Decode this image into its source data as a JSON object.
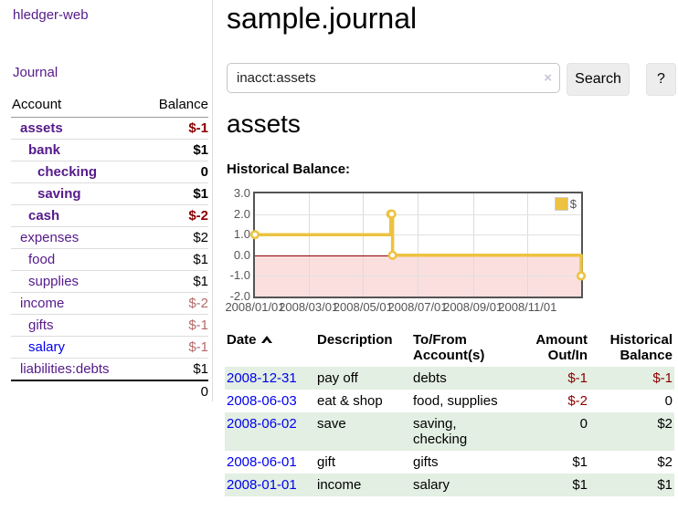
{
  "colors": {
    "link-purple": "#551a8b",
    "link-blue": "#0000ee",
    "neg-strong": "#8b0000",
    "neg-muted": "#b36a6a",
    "row-green": "#e2efe2",
    "divider": "#dddddd",
    "button-bg": "#ededed",
    "chart-gold": "#edc240",
    "chart-neg-fill": "#fbdfdf",
    "chart-zero": "#8b0000",
    "chart-border": "#545454"
  },
  "app": {
    "brand": "hledger-web"
  },
  "sidebar": {
    "journal_link": "Journal",
    "accounts": {
      "headers": {
        "account": "Account",
        "balance": "Balance"
      },
      "rows": [
        {
          "name": "assets",
          "balance": "$-1",
          "depth": 1,
          "in_account": true
        },
        {
          "name": "bank",
          "balance": "$1",
          "depth": 2,
          "in_account": true
        },
        {
          "name": "checking",
          "balance": "0",
          "depth": 3,
          "in_account": true
        },
        {
          "name": "saving",
          "balance": "$1",
          "depth": 3,
          "in_account": true
        },
        {
          "name": "cash",
          "balance": "$-2",
          "depth": 2,
          "in_account": true
        },
        {
          "name": "expenses",
          "balance": "$2",
          "depth": 1,
          "in_account": false
        },
        {
          "name": "food",
          "balance": "$1",
          "depth": 2,
          "in_account": false
        },
        {
          "name": "supplies",
          "balance": "$1",
          "depth": 2,
          "in_account": false
        },
        {
          "name": "income",
          "balance": "$-2",
          "depth": 1,
          "in_account": false
        },
        {
          "name": "gifts",
          "balance": "$-1",
          "depth": 2,
          "in_account": false
        },
        {
          "name": "salary",
          "balance": "$-1",
          "depth": 2,
          "in_account": false
        },
        {
          "name": "liabilities:debts",
          "balance": "$1",
          "depth": 1,
          "in_account": false
        }
      ],
      "total": "0"
    }
  },
  "main": {
    "title": "sample.journal",
    "search": {
      "value": "inacct:assets",
      "clear_icon": "×",
      "button_label": "Search",
      "help_label": "?"
    },
    "account_heading": "assets",
    "chart": {
      "label": "Historical Balance:",
      "chart_data": {
        "type": "line",
        "style": "step",
        "series": [
          {
            "name": "$",
            "points": [
              {
                "date": "2008-01-01",
                "day": 0,
                "value": 1
              },
              {
                "date": "2008-06-01",
                "day": 152,
                "value": 2
              },
              {
                "date": "2008-06-02",
                "day": 153,
                "value": 2
              },
              {
                "date": "2008-06-03",
                "day": 154,
                "value": 0
              },
              {
                "date": "2008-12-31",
                "day": 365,
                "value": -1
              }
            ]
          }
        ],
        "x_range_days": [
          0,
          365
        ],
        "ylim": [
          -2,
          3
        ],
        "yticks": [
          {
            "v": 3,
            "label": "3.0"
          },
          {
            "v": 2,
            "label": "2.0"
          },
          {
            "v": 1,
            "label": "1.0"
          },
          {
            "v": 0,
            "label": "0.0"
          },
          {
            "v": -1,
            "label": "-1.0"
          },
          {
            "v": -2,
            "label": "-2.0"
          }
        ],
        "xticks": [
          {
            "day": 0,
            "label": "2008/01/01"
          },
          {
            "day": 60,
            "label": "2008/03/01"
          },
          {
            "day": 121,
            "label": "2008/05/01"
          },
          {
            "day": 182,
            "label": "2008/07/01"
          },
          {
            "day": 244,
            "label": "2008/09/01"
          },
          {
            "day": 305,
            "label": "2008/11/01"
          }
        ],
        "legend": {
          "position": "top-right",
          "entries": [
            "$"
          ]
        },
        "negative_region_shaded": true
      }
    },
    "register": {
      "headers": [
        "Date",
        "Description",
        "To/From Account(s)",
        "Amount Out/In",
        "Historical Balance"
      ],
      "sort": {
        "column": "Date",
        "direction": "ascending"
      },
      "rows": [
        {
          "date": "2008-12-31",
          "description": "pay off",
          "accounts": "debts",
          "amount": "$-1",
          "balance": "$-1"
        },
        {
          "date": "2008-06-03",
          "description": "eat & shop",
          "accounts": "food, supplies",
          "amount": "$-2",
          "balance": "0"
        },
        {
          "date": "2008-06-02",
          "description": "save",
          "accounts": "saving, checking",
          "amount": "0",
          "balance": "$2"
        },
        {
          "date": "2008-06-01",
          "description": "gift",
          "accounts": "gifts",
          "amount": "$1",
          "balance": "$2"
        },
        {
          "date": "2008-01-01",
          "description": "income",
          "accounts": "salary",
          "amount": "$1",
          "balance": "$1"
        }
      ]
    }
  }
}
